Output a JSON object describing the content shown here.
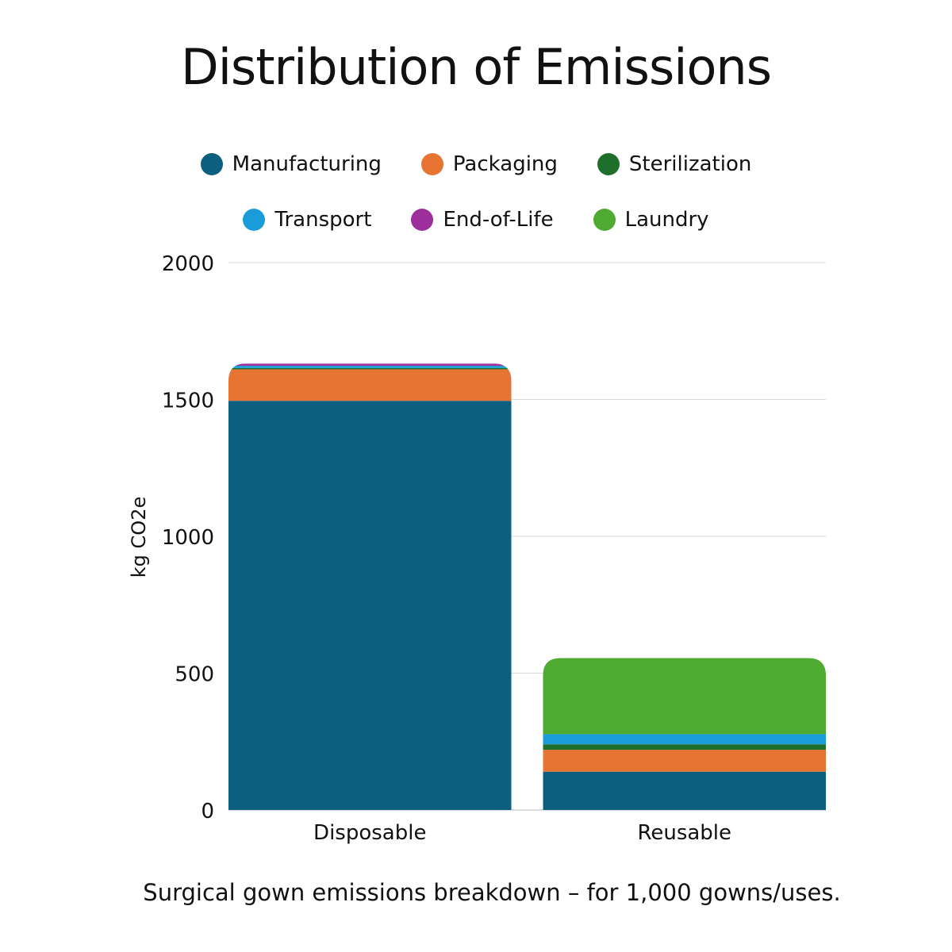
{
  "chart_data": {
    "type": "bar",
    "stacked": true,
    "title": "Distribution of Emissions",
    "ylabel": "kg CO2e",
    "xlabel": "",
    "caption": "Surgical gown emissions breakdown – for 1,000 gowns/uses.",
    "categories": [
      "Disposable",
      "Reusable"
    ],
    "ylim": [
      0,
      2000
    ],
    "yticks": [
      0,
      500,
      1000,
      1500,
      2000
    ],
    "ytick_labels": [
      "0",
      "500",
      "1000",
      "1500",
      "2000"
    ],
    "grid": true,
    "legend_position": "top",
    "series": [
      {
        "name": "Manufacturing",
        "color": "#0d5f80",
        "values": [
          1495,
          140
        ]
      },
      {
        "name": "Packaging",
        "color": "#e87434",
        "values": [
          115,
          80
        ]
      },
      {
        "name": "Sterilization",
        "color": "#1e6e2c",
        "values": [
          5,
          20
        ]
      },
      {
        "name": "Transport",
        "color": "#1a9cd8",
        "values": [
          8,
          37
        ]
      },
      {
        "name": "End-of-Life",
        "color": "#9c2f9c",
        "values": [
          8,
          0
        ]
      },
      {
        "name": "Laundry",
        "color": "#4faa32",
        "values": [
          0,
          278
        ]
      }
    ]
  }
}
